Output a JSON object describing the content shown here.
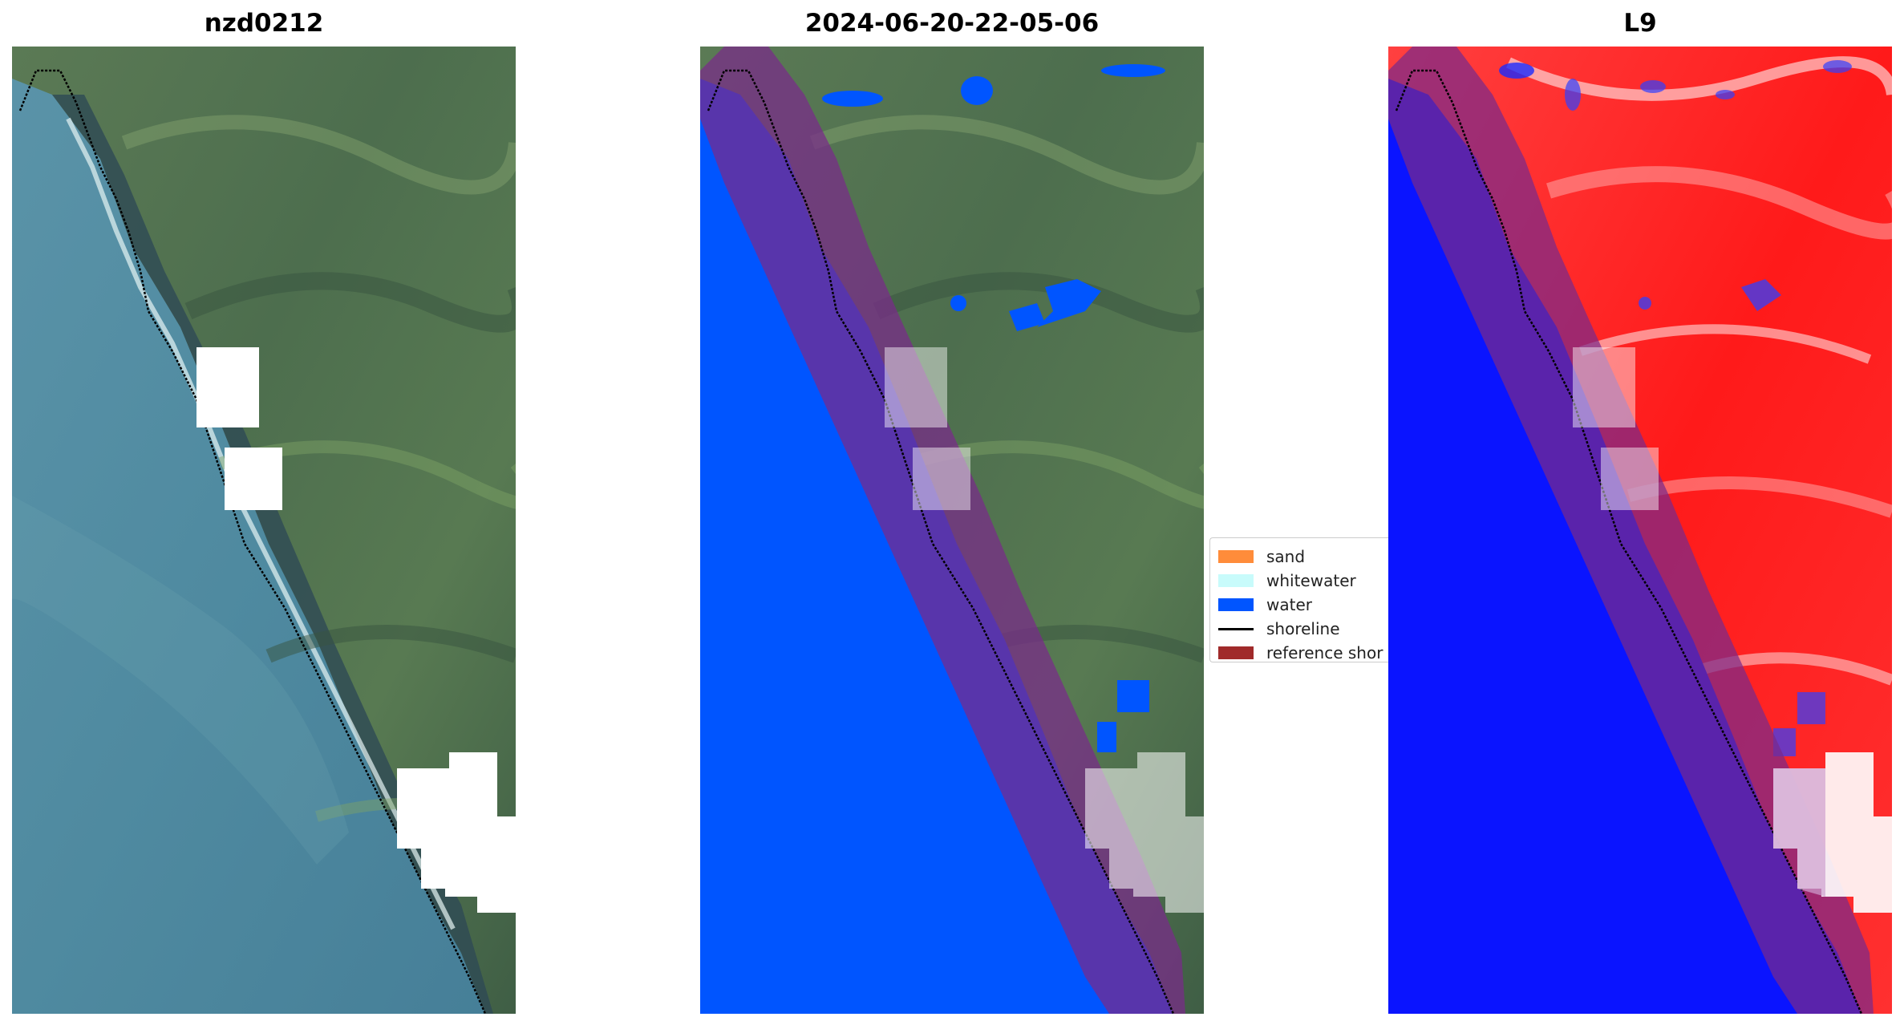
{
  "panels": [
    {
      "title": "nzd0212"
    },
    {
      "title": "2024-06-20-22-05-06"
    },
    {
      "title": "L9"
    }
  ],
  "legend": {
    "items": [
      {
        "label": "sand",
        "color": "#ff8c3a",
        "kind": "patch"
      },
      {
        "label": "whitewater",
        "color": "#c8fbfb",
        "kind": "patch"
      },
      {
        "label": "water",
        "color": "#0055ff",
        "kind": "patch"
      },
      {
        "label": "shoreline",
        "color": "#000000",
        "kind": "line"
      },
      {
        "label": "reference shor",
        "color": "#a02a2a",
        "kind": "patch"
      }
    ]
  },
  "colors": {
    "sea": "#4f8aa1",
    "land": "#4a6b4c",
    "water_class": "#0055ff",
    "buffer": "#7a2a8a",
    "cloud_mask": "#ffffff",
    "index_land": "#ff1a1a",
    "index_water": "#0a14ff"
  }
}
